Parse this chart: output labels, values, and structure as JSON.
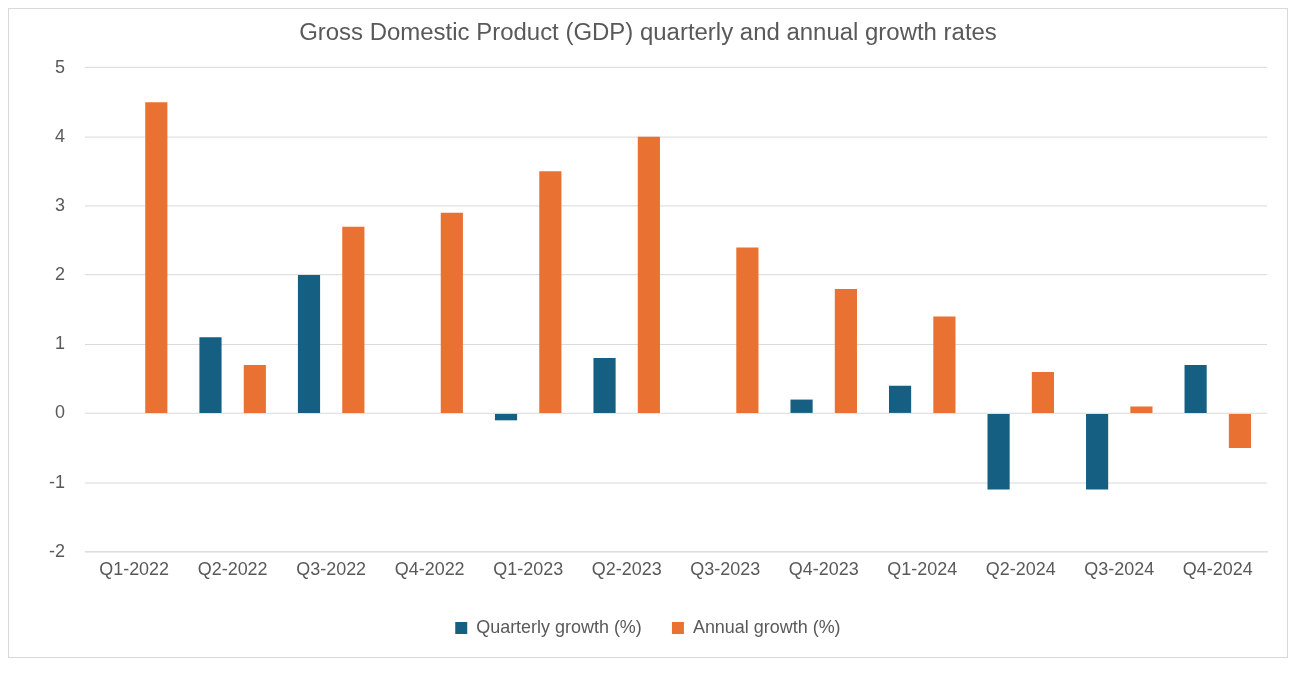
{
  "chart_data": {
    "type": "bar",
    "title": "Gross Domestic Product (GDP) quarterly and annual growth rates",
    "categories": [
      "Q1-2022",
      "Q2-2022",
      "Q3-2022",
      "Q4-2022",
      "Q1-2023",
      "Q2-2023",
      "Q3-2023",
      "Q4-2023",
      "Q1-2024",
      "Q2-2024",
      "Q3-2024",
      "Q4-2024"
    ],
    "series": [
      {
        "name": "Quarterly growth (%)",
        "color": "#156082",
        "values": [
          0,
          1.1,
          2.0,
          0,
          -0.1,
          0.8,
          0,
          0.2,
          0.4,
          -1.1,
          -1.1,
          0.7
        ]
      },
      {
        "name": "Annual growth (%)",
        "color": "#e97132",
        "values": [
          4.5,
          0.7,
          2.7,
          2.9,
          3.5,
          4.0,
          2.4,
          1.8,
          1.4,
          0.6,
          0.1,
          -0.5
        ]
      }
    ],
    "ylim": [
      -2,
      5
    ],
    "yticks": [
      -2,
      -1,
      0,
      1,
      2,
      3,
      4,
      5
    ],
    "grid": "y",
    "legend": "bottom"
  }
}
